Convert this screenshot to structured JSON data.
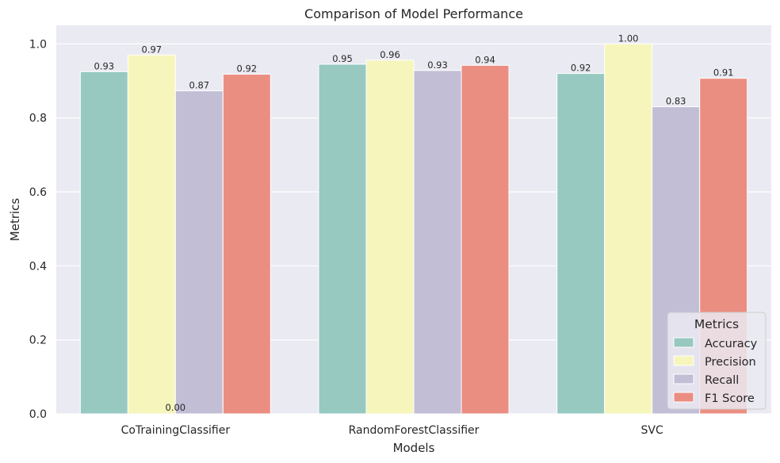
{
  "chart_data": {
    "type": "bar",
    "title": "Comparison of Model Performance",
    "xlabel": "Models",
    "ylabel": "Metrics",
    "categories": [
      "CoTrainingClassifier",
      "RandomForestClassifier",
      "SVC"
    ],
    "series": [
      {
        "name": "Accuracy",
        "color": "#97c9c1",
        "values": [
          0.925,
          0.945,
          0.92
        ],
        "labels": [
          "0.93",
          "0.95",
          "0.92"
        ]
      },
      {
        "name": "Precision",
        "color": "#f6f6bc",
        "values": [
          0.97,
          0.956,
          1.0
        ],
        "labels": [
          "0.97",
          "0.96",
          "1.00"
        ]
      },
      {
        "name": "Recall",
        "color": "#c1bed6",
        "values": [
          0.873,
          0.928,
          0.83
        ],
        "labels": [
          "0.87",
          "0.93",
          "0.83"
        ]
      },
      {
        "name": "F1 Score",
        "color": "#eb8e82",
        "values": [
          0.918,
          0.942,
          0.907
        ],
        "labels": [
          "0.92",
          "0.94",
          "0.91"
        ]
      }
    ],
    "extra_labels": [
      {
        "category": "CoTrainingClassifier",
        "label": "0.00"
      }
    ],
    "yticks": [
      "0.0",
      "0.2",
      "0.4",
      "0.6",
      "0.8",
      "1.0"
    ],
    "ylim": [
      0,
      1.05
    ],
    "grid": true,
    "legend_title": "Metrics",
    "legend_position": "lower-right",
    "background": "#eaeaf2"
  }
}
